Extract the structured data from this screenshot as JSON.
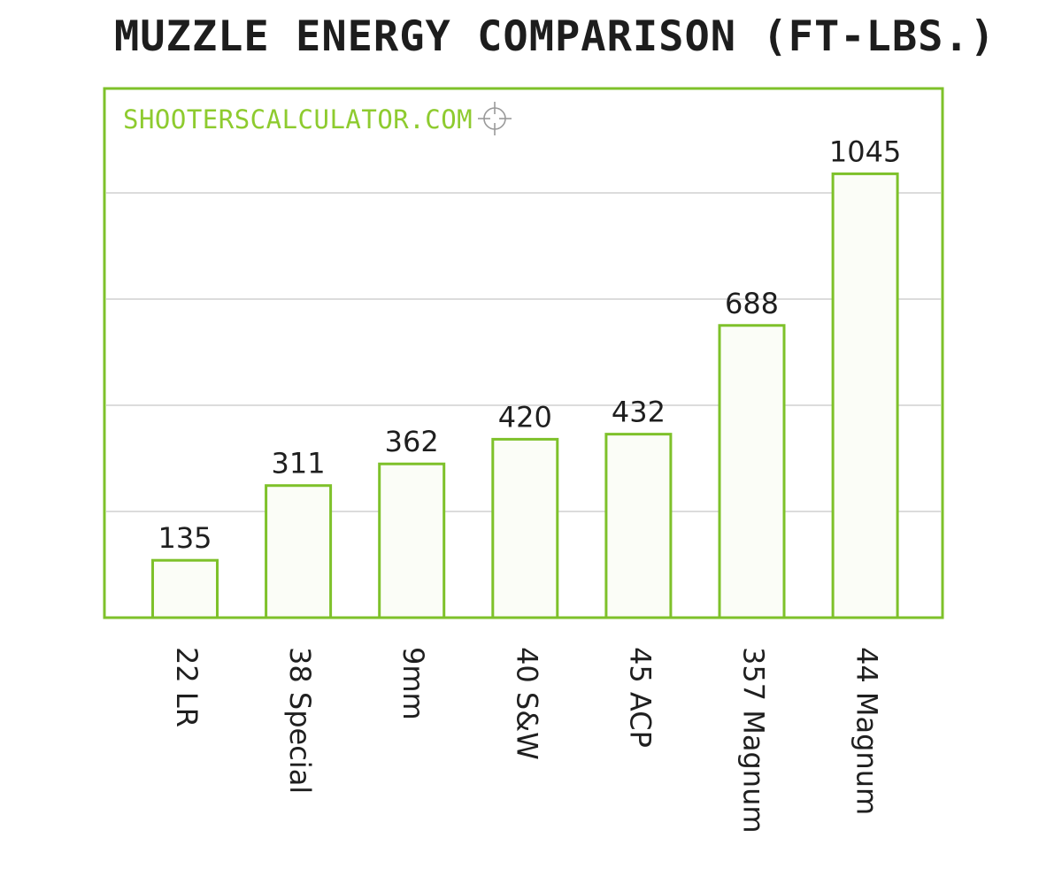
{
  "title": "MUZZLE ENERGY COMPARISON (FT-LBS.)",
  "watermark": "SHOOTERSCALCULATOR.COM",
  "colors": {
    "accent": "#7ec12a",
    "bar_fill": "#fbfdf7",
    "grid": "#dcdcdc",
    "text": "#1f1f1f"
  },
  "icons": {
    "watermark_icon": "crosshair-icon"
  },
  "chart_data": {
    "type": "bar",
    "title": "MUZZLE ENERGY COMPARISON (FT-LBS.)",
    "categories": [
      "22 LR",
      "38 Special",
      "9mm",
      "40 S&W",
      "45 ACP",
      "357 Magnum",
      "44 Magnum"
    ],
    "values": [
      135,
      311,
      362,
      420,
      432,
      688,
      1045
    ],
    "xlabel": "",
    "ylabel": "",
    "ylim": [
      0,
      1300
    ],
    "grid": true,
    "data_labels": true,
    "legend": "none",
    "tick_label_rotation": "vertical"
  }
}
